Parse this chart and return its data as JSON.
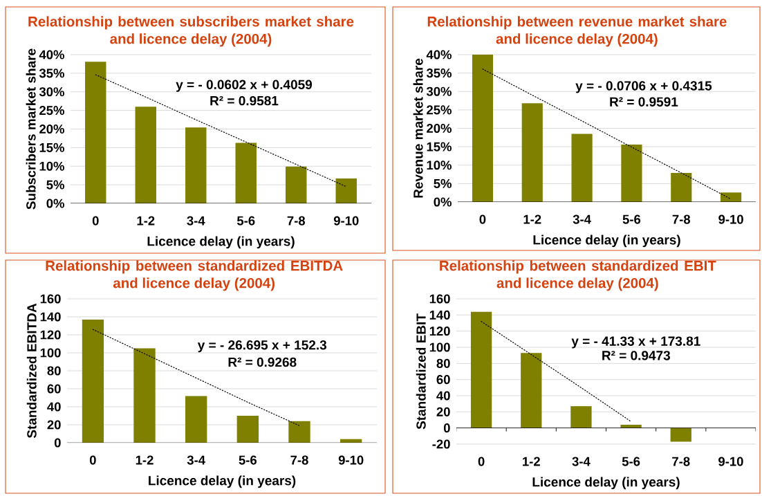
{
  "chart_data": [
    {
      "type": "bar",
      "title": "Relationship between subscribers market share and licence delay (2004)",
      "xlabel": "Licence delay (in years)",
      "ylabel": "Subscribers market share",
      "categories": [
        "0",
        "1-2",
        "3-4",
        "5-6",
        "7-8",
        "9-10"
      ],
      "series": [
        {
          "type": "bar",
          "color": "#808000",
          "values": [
            38.1,
            26.0,
            20.4,
            16.3,
            9.9,
            6.7
          ]
        },
        {
          "type": "line",
          "color": "#000000",
          "line_style": "dotted",
          "values": [
            34.6,
            28.6,
            22.5,
            16.5,
            10.5,
            4.5
          ]
        }
      ],
      "ylim": [
        0,
        40
      ],
      "yticks": [
        {
          "value": 0,
          "label": "0%"
        },
        {
          "value": 5,
          "label": "5%"
        },
        {
          "value": 10,
          "label": "10%"
        },
        {
          "value": 15,
          "label": "15%"
        },
        {
          "value": 20,
          "label": "20%"
        },
        {
          "value": 25,
          "label": "25%"
        },
        {
          "value": 30,
          "label": "30%"
        },
        {
          "value": 35,
          "label": "35%"
        },
        {
          "value": 40,
          "label": "40%"
        }
      ],
      "grid": "y",
      "annotations": [
        "y = - 0.0602 x + 0.4059",
        "R² = 0.9581"
      ]
    },
    {
      "type": "bar",
      "title": "Relationship between revenue market share and licence delay (2004)",
      "xlabel": "Licence delay (in years)",
      "ylabel": "Revenue market share",
      "categories": [
        "0",
        "1-2",
        "3-4",
        "5-6",
        "7-8",
        "9-10"
      ],
      "series": [
        {
          "type": "bar",
          "color": "#808000",
          "values": [
            40.0,
            26.8,
            18.5,
            15.6,
            7.9,
            2.6
          ]
        },
        {
          "type": "line",
          "color": "#000000",
          "line_style": "dotted",
          "values": [
            36.1,
            29.0,
            22.0,
            14.9,
            7.9,
            0.8
          ]
        }
      ],
      "ylim": [
        0,
        40
      ],
      "yticks": [
        {
          "value": 0,
          "label": "0%"
        },
        {
          "value": 5,
          "label": "5%"
        },
        {
          "value": 10,
          "label": "10%"
        },
        {
          "value": 15,
          "label": "15%"
        },
        {
          "value": 20,
          "label": "20%"
        },
        {
          "value": 25,
          "label": "25%"
        },
        {
          "value": 30,
          "label": "30%"
        },
        {
          "value": 35,
          "label": "35%"
        },
        {
          "value": 40,
          "label": "40%"
        }
      ],
      "grid": "y",
      "annotations": [
        "y = - 0.0706 x + 0.4315",
        "R² = 0.9591"
      ]
    },
    {
      "type": "bar",
      "title": "Relationship between standardized EBITDA and licence delay (2004)",
      "xlabel": "Licence delay (in years)",
      "ylabel": "Standardized EBITDA",
      "categories": [
        "0",
        "1-2",
        "3-4",
        "5-6",
        "7-8",
        "9-10"
      ],
      "series": [
        {
          "type": "bar",
          "color": "#808000",
          "values": [
            137,
            105,
            52,
            30,
            24,
            4
          ]
        },
        {
          "type": "line",
          "color": "#000000",
          "line_style": "dotted",
          "values": [
            126,
            99,
            72,
            45,
            19,
            null
          ]
        }
      ],
      "ylim": [
        0,
        160
      ],
      "yticks": [
        0,
        20,
        40,
        60,
        80,
        100,
        120,
        140,
        160
      ],
      "grid": "y",
      "annotations": [
        "y = - 26.695 x + 152.3",
        "R² = 0.9268"
      ]
    },
    {
      "type": "bar",
      "title": "Relationship between standardized EBIT and licence delay (2004)",
      "xlabel": "Licence delay (in years)",
      "ylabel": "Standardized EBIT",
      "categories": [
        "0",
        "1-2",
        "3-4",
        "5-6",
        "7-8",
        "9-10"
      ],
      "series": [
        {
          "type": "bar",
          "color": "#808000",
          "values": [
            144,
            93,
            27,
            4,
            -17,
            null
          ]
        },
        {
          "type": "line",
          "color": "#000000",
          "line_style": "dotted",
          "values": [
            132,
            91,
            50,
            8,
            null,
            null
          ]
        }
      ],
      "ylim": [
        -20,
        160
      ],
      "yticks": [
        -20,
        0,
        20,
        40,
        60,
        80,
        100,
        120,
        140,
        160
      ],
      "grid": "y",
      "annotations": [
        "y = - 41.33 x + 173.81",
        "R² = 0.9473"
      ]
    }
  ]
}
